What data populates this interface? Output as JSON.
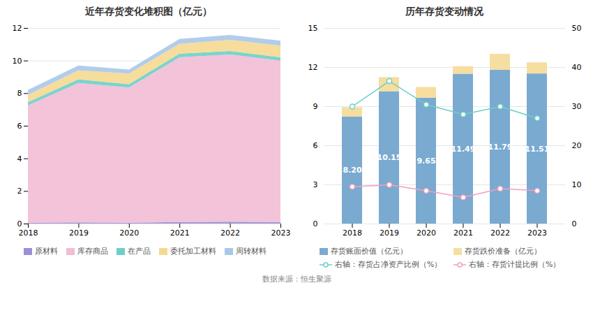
{
  "chart_data": [
    {
      "type": "area",
      "title": "近年存货变化堆积图（亿元）",
      "stacked": true,
      "x": [
        2018,
        2019,
        2020,
        2021,
        2022,
        2023
      ],
      "series": [
        {
          "name": "原材料",
          "color": "#9b8fd4",
          "values": [
            0.05,
            0.08,
            0.05,
            0.1,
            0.12,
            0.1
          ]
        },
        {
          "name": "库存商品",
          "color": "#f2bcd5",
          "values": [
            7.2,
            8.55,
            8.3,
            10.1,
            10.25,
            9.9
          ]
        },
        {
          "name": "在产品",
          "color": "#6ecec8",
          "values": [
            0.2,
            0.22,
            0.2,
            0.22,
            0.22,
            0.2
          ]
        },
        {
          "name": "委托加工材料",
          "color": "#f5d990",
          "values": [
            0.45,
            0.55,
            0.65,
            0.6,
            0.68,
            0.72
          ]
        },
        {
          "name": "周转材料",
          "color": "#a8c8e8",
          "values": [
            0.3,
            0.3,
            0.25,
            0.3,
            0.3,
            0.3
          ]
        }
      ],
      "xlim": [
        2018,
        2023
      ],
      "xticks": [
        2018,
        2019,
        2020,
        2021,
        2022,
        2023
      ],
      "ylim": [
        0,
        12
      ],
      "yticks": [
        0,
        2,
        4,
        6,
        8,
        10,
        12
      ],
      "grid": true,
      "legend": "bottom"
    },
    {
      "type": "bar",
      "title": "历年存货变动情况",
      "stacked": true,
      "categories": [
        2018,
        2019,
        2020,
        2021,
        2022,
        2023
      ],
      "series": [
        {
          "name": "存货账面价值（亿元）",
          "type": "bar",
          "color": "#7aaad0",
          "values": [
            8.2,
            10.15,
            9.65,
            11.49,
            11.79,
            11.51
          ],
          "data_labels": true,
          "value_labels": [
            "8.20",
            "10.15",
            "9.65",
            "11.49",
            "11.79",
            "11.51"
          ]
        },
        {
          "name": "存货跌价准备（亿元）",
          "type": "bar",
          "color": "#f5dea0",
          "values": [
            0.72,
            1.08,
            0.82,
            0.58,
            1.22,
            0.85
          ]
        },
        {
          "name": "右轴：存货占净资产比例（%）",
          "type": "line",
          "axis": "y2",
          "color": "#6ecec8",
          "marker": "circle",
          "values": [
            30.0,
            36.5,
            30.5,
            28.0,
            30.0,
            27.0
          ]
        },
        {
          "name": "右轴：存货计提比例（%）",
          "type": "line",
          "axis": "y2",
          "color": "#f0a0c0",
          "marker": "circle",
          "values": [
            9.5,
            10.0,
            8.5,
            6.8,
            9.0,
            8.5
          ]
        }
      ],
      "ylim": [
        0,
        15
      ],
      "yticks": [
        0,
        3,
        6,
        9,
        12,
        15
      ],
      "y2lim": [
        0,
        50
      ],
      "y2ticks": [
        0,
        10,
        20,
        30,
        40,
        50
      ],
      "grid": true,
      "legend": "bottom",
      "annotations": [
        "数据来源：恒生聚源"
      ]
    }
  ]
}
